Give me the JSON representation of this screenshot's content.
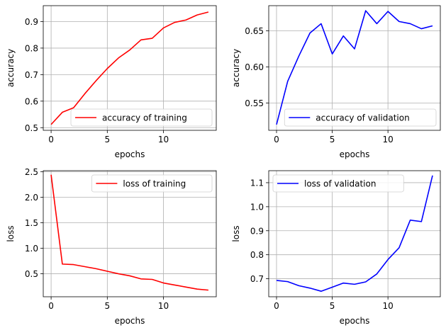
{
  "chart_data": [
    {
      "type": "line",
      "xlabel": "epochs",
      "ylabel": "accuracy",
      "xlim": [
        -0.7,
        14.7
      ],
      "ylim": [
        0.49,
        0.96
      ],
      "xticks": [
        0,
        5,
        10
      ],
      "yticks": [
        0.5,
        0.6,
        0.7,
        0.8,
        0.9
      ],
      "ytick_labels": [
        "0.5",
        "0.6",
        "0.7",
        "0.8",
        "0.9"
      ],
      "grid": true,
      "legend_position": "lower-right",
      "series": [
        {
          "name": "accuracy of training",
          "color": "#ff0000",
          "x": [
            0,
            1,
            2,
            3,
            4,
            5,
            6,
            7,
            8,
            9,
            10,
            11,
            12,
            13,
            14
          ],
          "values": [
            0.512,
            0.558,
            0.575,
            0.628,
            0.677,
            0.723,
            0.763,
            0.793,
            0.831,
            0.837,
            0.876,
            0.897,
            0.906,
            0.925,
            0.936
          ]
        }
      ]
    },
    {
      "type": "line",
      "xlabel": "epochs",
      "ylabel": "accuracy",
      "xlim": [
        -0.7,
        14.7
      ],
      "ylim": [
        0.512,
        0.685
      ],
      "xticks": [
        0,
        5,
        10
      ],
      "yticks": [
        0.55,
        0.6,
        0.65
      ],
      "ytick_labels": [
        "0.55",
        "0.60",
        "0.65"
      ],
      "grid": true,
      "legend_position": "lower-right",
      "series": [
        {
          "name": "accuracy of validation",
          "color": "#0000ff",
          "x": [
            0,
            1,
            2,
            3,
            4,
            5,
            6,
            7,
            8,
            9,
            10,
            11,
            12,
            13,
            14
          ],
          "values": [
            0.52,
            0.58,
            0.615,
            0.647,
            0.66,
            0.618,
            0.643,
            0.625,
            0.678,
            0.66,
            0.677,
            0.663,
            0.66,
            0.653,
            0.657
          ]
        }
      ]
    },
    {
      "type": "line",
      "xlabel": "epochs",
      "ylabel": "loss",
      "xlim": [
        -0.7,
        14.7
      ],
      "ylim": [
        0.05,
        2.52
      ],
      "xticks": [
        0,
        5,
        10
      ],
      "yticks": [
        0.5,
        1.0,
        1.5,
        2.0,
        2.5
      ],
      "ytick_labels": [
        "0.5",
        "1.0",
        "1.5",
        "2.0",
        "2.5"
      ],
      "grid": true,
      "legend_position": "upper-right",
      "series": [
        {
          "name": "loss of training",
          "color": "#ff0000",
          "x": [
            0,
            1,
            2,
            3,
            4,
            5,
            6,
            7,
            8,
            9,
            10,
            11,
            12,
            13,
            14
          ],
          "values": [
            2.44,
            0.69,
            0.68,
            0.64,
            0.6,
            0.55,
            0.5,
            0.46,
            0.4,
            0.39,
            0.32,
            0.28,
            0.24,
            0.2,
            0.18
          ]
        }
      ]
    },
    {
      "type": "line",
      "xlabel": "epochs",
      "ylabel": "loss",
      "xlim": [
        -0.7,
        14.7
      ],
      "ylim": [
        0.625,
        1.15
      ],
      "xticks": [
        0,
        5,
        10
      ],
      "yticks": [
        0.7,
        0.8,
        0.9,
        1.0,
        1.1
      ],
      "ytick_labels": [
        "0.7",
        "0.8",
        "0.9",
        "1.0",
        "1.1"
      ],
      "grid": true,
      "legend_position": "upper-left",
      "series": [
        {
          "name": "loss of validation",
          "color": "#0000ff",
          "x": [
            0,
            1,
            2,
            3,
            4,
            5,
            6,
            7,
            8,
            9,
            10,
            11,
            12,
            13,
            14
          ],
          "values": [
            0.693,
            0.688,
            0.671,
            0.661,
            0.648,
            0.665,
            0.682,
            0.677,
            0.687,
            0.72,
            0.78,
            0.829,
            0.944,
            0.938,
            1.13
          ]
        }
      ]
    }
  ]
}
